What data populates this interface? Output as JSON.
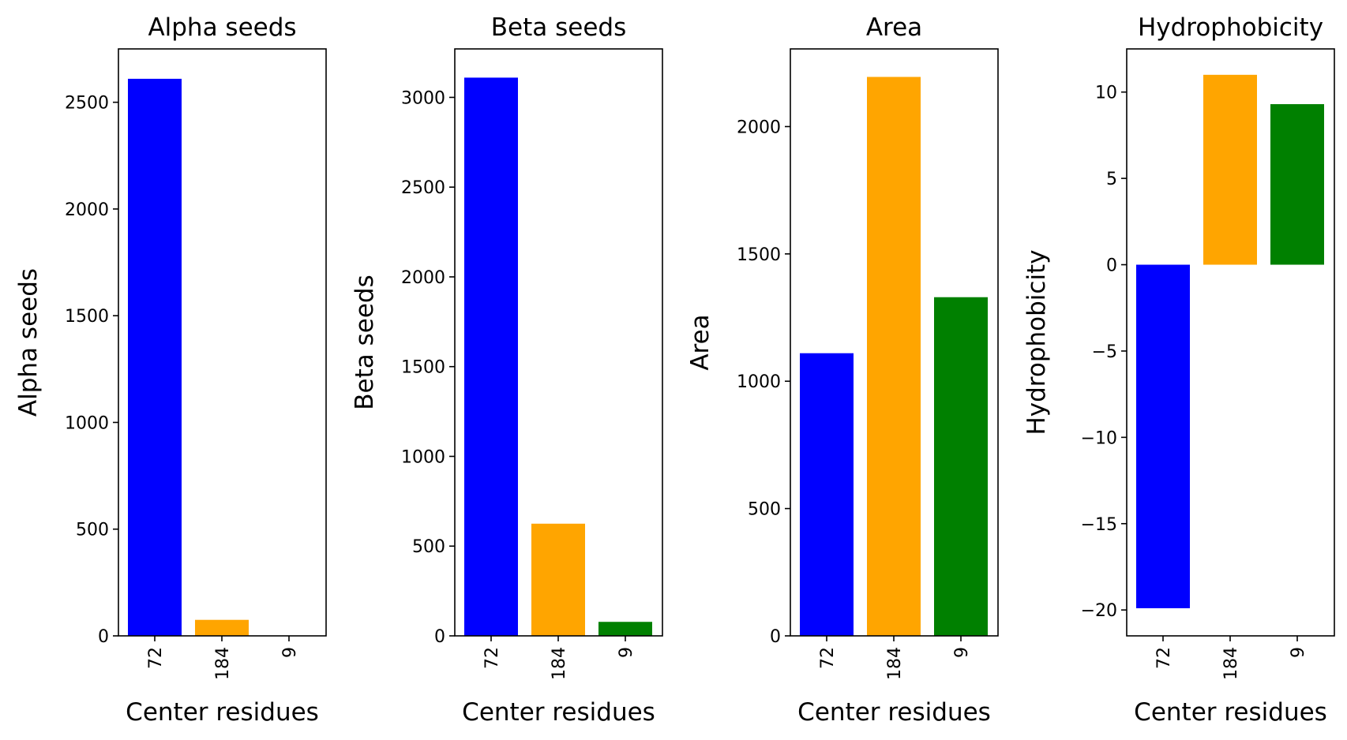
{
  "chart_data": [
    {
      "type": "bar",
      "title": "Alpha seeds",
      "xlabel": "Center residues",
      "ylabel": "Alpha seeds",
      "categories": [
        "72",
        "184",
        "9"
      ],
      "values": [
        2610,
        75,
        0
      ],
      "colors": [
        "#0000ff",
        "#ffa500",
        "#008000"
      ],
      "ylim": [
        0,
        2750
      ],
      "yticks": [
        0,
        500,
        1000,
        1500,
        2000,
        2500
      ],
      "ytick_labels": [
        "0",
        "500",
        "1000",
        "1500",
        "2000",
        "2500"
      ]
    },
    {
      "type": "bar",
      "title": "Beta seeds",
      "xlabel": "Center residues",
      "ylabel": "Beta seeds",
      "categories": [
        "72",
        "184",
        "9"
      ],
      "values": [
        3110,
        625,
        78
      ],
      "colors": [
        "#0000ff",
        "#ffa500",
        "#008000"
      ],
      "ylim": [
        0,
        3270
      ],
      "yticks": [
        0,
        500,
        1000,
        1500,
        2000,
        2500,
        3000
      ],
      "ytick_labels": [
        "0",
        "500",
        "1000",
        "1500",
        "2000",
        "2500",
        "3000"
      ]
    },
    {
      "type": "bar",
      "title": "Area",
      "xlabel": "Center residues",
      "ylabel": "Area",
      "categories": [
        "72",
        "184",
        "9"
      ],
      "values": [
        1110,
        2195,
        1330
      ],
      "colors": [
        "#0000ff",
        "#ffa500",
        "#008000"
      ],
      "ylim": [
        0,
        2305
      ],
      "yticks": [
        0,
        500,
        1000,
        1500,
        2000
      ],
      "ytick_labels": [
        "0",
        "500",
        "1000",
        "1500",
        "2000"
      ]
    },
    {
      "type": "bar",
      "title": "Hydrophobicity",
      "xlabel": "Center residues",
      "ylabel": "Hydrophobicity",
      "categories": [
        "72",
        "184",
        "9"
      ],
      "values": [
        -19.9,
        11.0,
        9.3
      ],
      "colors": [
        "#0000ff",
        "#ffa500",
        "#008000"
      ],
      "ylim": [
        -21.5,
        12.5
      ],
      "yticks": [
        -20,
        -15,
        -10,
        -5,
        0,
        5,
        10
      ],
      "ytick_labels": [
        "−20",
        "−15",
        "−10",
        "−5",
        "0",
        "5",
        "10"
      ]
    }
  ]
}
